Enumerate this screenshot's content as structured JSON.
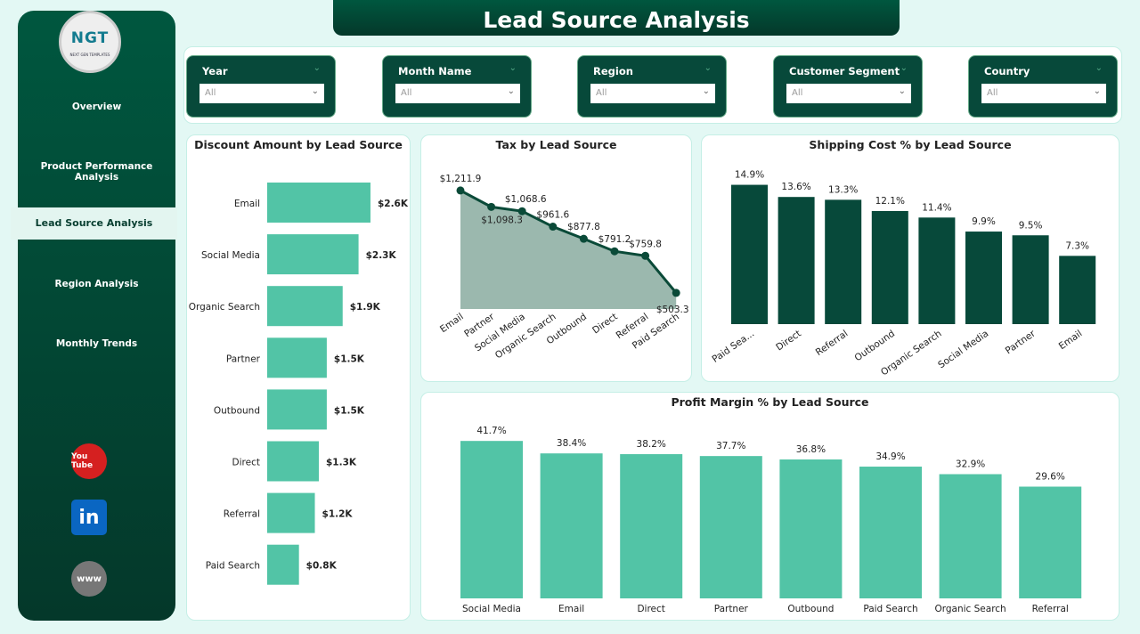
{
  "title": "Lead Source  Analysis",
  "logo": {
    "text": "NGT",
    "subtext": "NEXT GEN TEMPLATES"
  },
  "sidebar": {
    "items": [
      {
        "label": "Overview"
      },
      {
        "label": "Product Performance Analysis"
      },
      {
        "label": "Lead Source Analysis",
        "active": true
      },
      {
        "label": "Region Analysis"
      },
      {
        "label": "Monthly Trends"
      }
    ],
    "social": [
      {
        "icon": "youtube-icon",
        "label": "You Tube",
        "color": "#d52020"
      },
      {
        "icon": "linkedin-icon",
        "label": "in",
        "color": "#0a66c2"
      },
      {
        "icon": "globe-icon",
        "label": "www",
        "color": "#777"
      }
    ]
  },
  "filters": [
    {
      "label": "Year",
      "value": "All"
    },
    {
      "label": "Month Name",
      "value": "All"
    },
    {
      "label": "Region",
      "value": "All"
    },
    {
      "label": "Customer Segment",
      "value": "All"
    },
    {
      "label": "Country",
      "value": "All"
    }
  ],
  "colors": {
    "dark": "#07493a",
    "bar": "#52c4a6",
    "area": "#9bb8ae"
  },
  "chart_data": [
    {
      "type": "bar",
      "orientation": "horizontal",
      "title": "Discount Amount by Lead Source",
      "categories": [
        "Email",
        "Social Media",
        "Organic Search",
        "Partner",
        "Outbound",
        "Direct",
        "Referral",
        "Paid Search"
      ],
      "values": [
        2.6,
        2.3,
        1.9,
        1.5,
        1.5,
        1.3,
        1.2,
        0.8
      ],
      "labels": [
        "$2.6K",
        "$2.3K",
        "$1.9K",
        "$1.5K",
        "$1.5K",
        "$1.3K",
        "$1.2K",
        "$0.8K"
      ],
      "unit": "$K"
    },
    {
      "type": "area",
      "title": "Tax by Lead Source",
      "categories": [
        "Email",
        "Partner",
        "Social Media",
        "Organic Search",
        "Outbound",
        "Direct",
        "Referral",
        "Paid Search"
      ],
      "values": [
        1211.9,
        1098.3,
        1068.6,
        961.6,
        877.8,
        791.2,
        759.8,
        503.3
      ],
      "labels": [
        "$1,211.9",
        "$1,098.3",
        "$1,068.6",
        "$961.6",
        "$877.8",
        "$791.2",
        "$759.8",
        "$503.3"
      ]
    },
    {
      "type": "bar",
      "title": "Shipping Cost % by Lead Source",
      "categories": [
        "Paid Sea...",
        "Direct",
        "Referral",
        "Outbound",
        "Organic Search",
        "Social Media",
        "Partner",
        "Email"
      ],
      "values": [
        14.9,
        13.6,
        13.3,
        12.1,
        11.4,
        9.9,
        9.5,
        7.3
      ],
      "labels": [
        "14.9%",
        "13.6%",
        "13.3%",
        "12.1%",
        "11.4%",
        "9.9%",
        "9.5%",
        "7.3%"
      ]
    },
    {
      "type": "bar",
      "title": "Profit Margin % by Lead Source",
      "categories": [
        "Social Media",
        "Email",
        "Direct",
        "Partner",
        "Outbound",
        "Paid Search",
        "Organic Search",
        "Referral"
      ],
      "values": [
        41.7,
        38.4,
        38.2,
        37.7,
        36.8,
        34.9,
        32.9,
        29.6
      ],
      "labels": [
        "41.7%",
        "38.4%",
        "38.2%",
        "37.7%",
        "36.8%",
        "34.9%",
        "32.9%",
        "29.6%"
      ]
    }
  ]
}
